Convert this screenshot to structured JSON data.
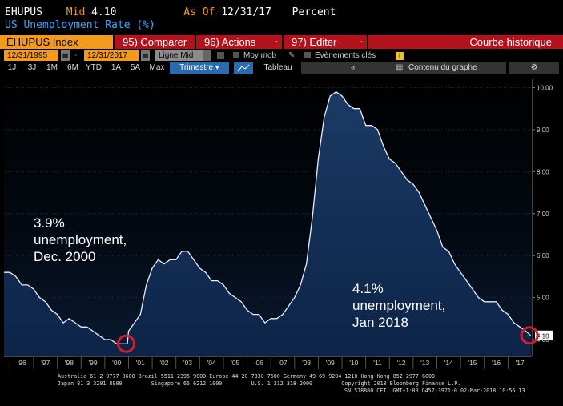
{
  "header": {
    "ticker": "EHUPUS",
    "mid_label": "Mid",
    "mid_value": "4.10",
    "asof_label": "As Of",
    "asof_value": "12/31/17",
    "unit": "Percent",
    "subtitle": "US Unemployment Rate (%)"
  },
  "toolbar": {
    "security": "EHUPUS Index",
    "comparer": "95) Comparer",
    "actions": "96) Actions",
    "editer": "97) Editer",
    "caret": "-",
    "courbe": "Courbe historique",
    "start_date": "12/31/1995",
    "end_date": "12/31/2017",
    "line_type": "Ligne Mid",
    "moy_mob": "Moy mob",
    "events": "Evènements clés",
    "tabs": [
      "1J",
      "3J",
      "1M",
      "6M",
      "YTD",
      "1A",
      "5A",
      "Max",
      "Trimestre ▾"
    ],
    "tableau": "Tableau",
    "contenu": "Contenu du graphe",
    "back": "«",
    "gear": "⚙"
  },
  "chart_data": {
    "type": "area",
    "x_labels": [
      "'96",
      "'97",
      "'98",
      "'99",
      "'00",
      "'01",
      "'02",
      "'03",
      "'04",
      "'05",
      "'06",
      "'07",
      "'08",
      "'09",
      "'10",
      "'11",
      "'12",
      "'13",
      "'14",
      "'15",
      "'16",
      "'17"
    ],
    "y_ticks": [
      "10.00",
      "9.00",
      "8.00",
      "7.00",
      "6.00",
      "5.00",
      "4.10",
      "4.00"
    ],
    "ylim": [
      3.6,
      10.2
    ],
    "last_value": "4.10",
    "series": [
      {
        "x": [
          1995.75,
          1996.0,
          1996.25,
          1996.5,
          1996.75,
          1997.0,
          1997.25,
          1997.5,
          1997.75,
          1998.0,
          1998.25,
          1998.5,
          1998.75,
          1999.0,
          1999.25,
          1999.5,
          1999.75,
          2000.0,
          2000.25,
          2000.5,
          2000.75,
          2000.95,
          2001.0,
          2001.25,
          2001.5,
          2001.75,
          2002.0,
          2002.25,
          2002.5,
          2002.75,
          2003.0,
          2003.25,
          2003.5,
          2003.75,
          2004.0,
          2004.25,
          2004.5,
          2004.75,
          2005.0,
          2005.25,
          2005.5,
          2005.75,
          2006.0,
          2006.25,
          2006.5,
          2006.75,
          2007.0,
          2007.25,
          2007.5,
          2007.75,
          2008.0,
          2008.25,
          2008.5,
          2008.75,
          2009.0,
          2009.25,
          2009.5,
          2009.75,
          2010.0,
          2010.25,
          2010.5,
          2010.75,
          2011.0,
          2011.25,
          2011.5,
          2011.75,
          2012.0,
          2012.25,
          2012.5,
          2012.75,
          2013.0,
          2013.25,
          2013.5,
          2013.75,
          2014.0,
          2014.25,
          2014.5,
          2014.75,
          2015.0,
          2015.25,
          2015.5,
          2015.75,
          2016.0,
          2016.25,
          2016.5,
          2016.75,
          2017.0,
          2017.25,
          2017.5,
          2017.75,
          2017.95
        ],
        "y": [
          5.6,
          5.6,
          5.5,
          5.3,
          5.3,
          5.2,
          5.0,
          4.9,
          4.7,
          4.6,
          4.4,
          4.5,
          4.4,
          4.3,
          4.3,
          4.2,
          4.1,
          4.0,
          4.0,
          3.9,
          3.9,
          3.9,
          4.2,
          4.4,
          4.6,
          5.3,
          5.7,
          5.9,
          5.8,
          5.9,
          5.9,
          6.1,
          6.1,
          5.9,
          5.7,
          5.6,
          5.4,
          5.4,
          5.3,
          5.1,
          5.0,
          4.9,
          4.7,
          4.6,
          4.6,
          4.4,
          4.5,
          4.5,
          4.6,
          4.8,
          5.0,
          5.3,
          5.8,
          6.9,
          8.3,
          9.3,
          9.8,
          9.9,
          9.8,
          9.6,
          9.5,
          9.5,
          9.1,
          9.1,
          9.0,
          8.6,
          8.3,
          8.2,
          8.0,
          7.8,
          7.7,
          7.5,
          7.2,
          6.9,
          6.6,
          6.2,
          6.1,
          5.8,
          5.6,
          5.4,
          5.2,
          5.0,
          4.9,
          4.9,
          4.9,
          4.7,
          4.6,
          4.4,
          4.3,
          4.2,
          4.1
        ]
      }
    ],
    "annotations": [
      {
        "lines": [
          "3.9%",
          "unemployment,",
          "Dec. 2000"
        ],
        "x": 2000.9,
        "y": 3.9
      },
      {
        "lines": [
          "4.1%",
          "unemployment,",
          "Jan 2018"
        ],
        "x": 2017.9,
        "y": 4.1
      }
    ]
  },
  "footer": {
    "line1": "Australia 61 2 9777 8600 Brazil 5511 2395 9000 Europe 44 20 7330 7500 Germany 49 69 9204 1210 Hong Kong 852 2977 6000",
    "line2": "Japan 81 3 3201 8900         Singapore 65 6212 1000         U.S. 1 212 318 2000         Copyright 2018 Bloomberg Finance L.P.",
    "line3": "SN 578880 CET  GMT+1:00 G457-3971-0 02-Mar-2018 10:56:13"
  },
  "colors": {
    "orange": "#f39a1c",
    "red": "#b3121d",
    "area": "#1b3a66",
    "circle": "#cc1f2f"
  }
}
